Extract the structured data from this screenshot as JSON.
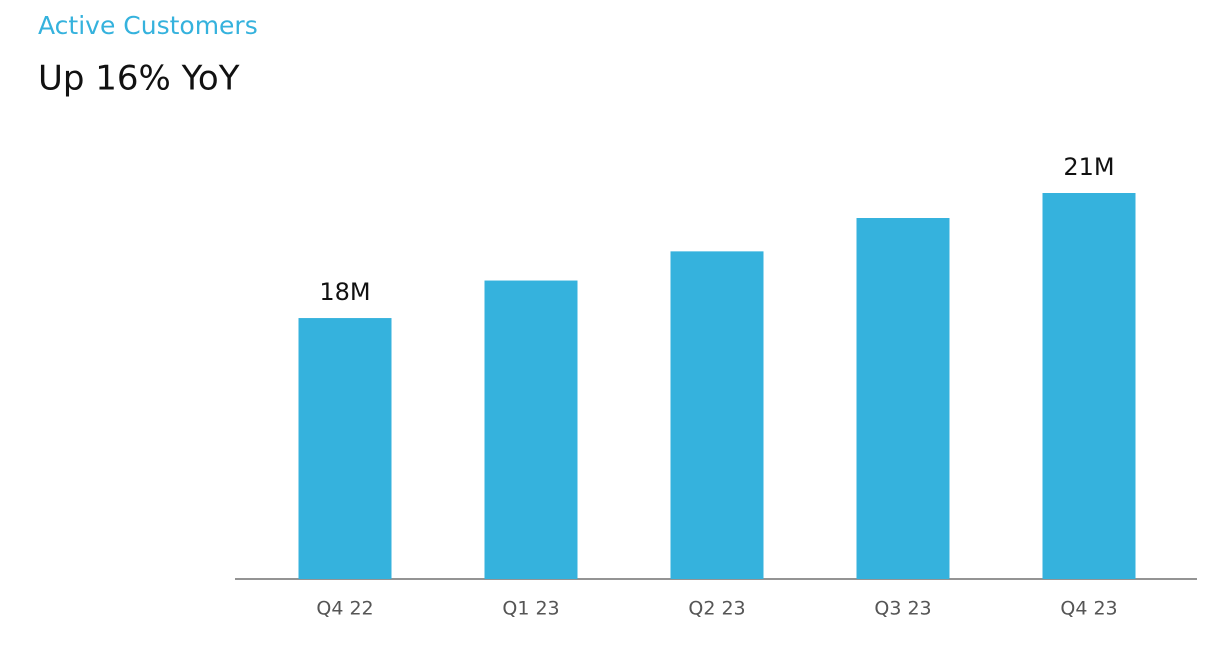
{
  "chart_data": {
    "type": "bar",
    "title": "Active Customers",
    "subtitle": "Up 16% YoY",
    "categories": [
      "Q4 22",
      "Q1 23",
      "Q2 23",
      "Q3 23",
      "Q4 23"
    ],
    "values": [
      18,
      18.9,
      19.6,
      20.4,
      21
    ],
    "value_labels": [
      "18M",
      null,
      null,
      null,
      "21M"
    ],
    "color": "#35b2dd",
    "ylim": [
      11.74,
      21
    ]
  }
}
